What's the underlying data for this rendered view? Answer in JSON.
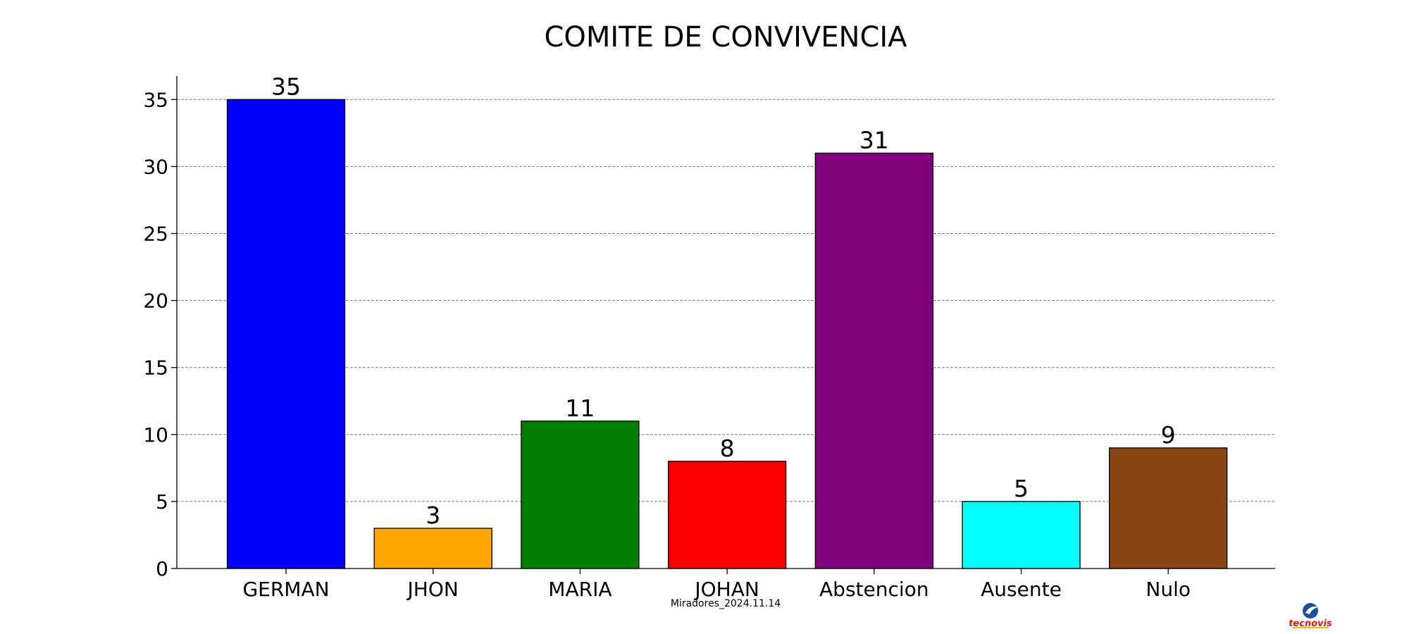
{
  "chart_data": {
    "type": "bar",
    "title": "COMITE DE CONVIVENCIA",
    "categories": [
      "GERMAN",
      "JHON",
      "MARIA",
      "JOHAN",
      "Abstencion",
      "Ausente",
      "Nulo"
    ],
    "values": [
      35,
      3,
      11,
      8,
      31,
      5,
      9
    ],
    "colors": [
      "#0000ff",
      "#ffa500",
      "#008000",
      "#ff0000",
      "#800080",
      "#00ffff",
      "#8b4513"
    ],
    "xlabel": "Miradores_2024.11.14",
    "ylabel": "",
    "ylim": [
      0,
      36.75
    ],
    "yticks": [
      0,
      5,
      10,
      15,
      20,
      25,
      30,
      35
    ],
    "grid": true,
    "data_labels": true
  },
  "logo": {
    "text": "tecnovis",
    "icon": "globe-logo-icon",
    "text_color": "#e8151b",
    "underline_color": "#f2c400",
    "globe_color": "#1f4fa3"
  }
}
